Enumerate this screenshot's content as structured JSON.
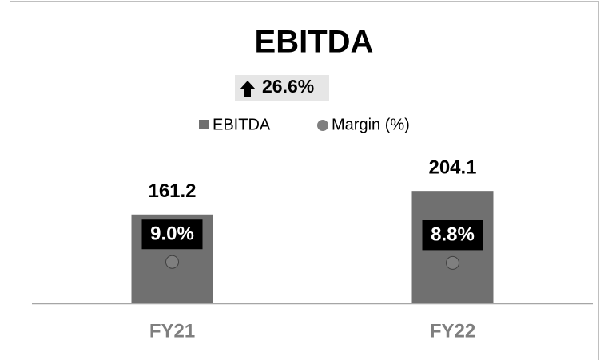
{
  "chart_data": {
    "type": "bar",
    "title": "EBITDA",
    "annotation": "26.6%",
    "categories": [
      "FY21",
      "FY22"
    ],
    "series": [
      {
        "name": "EBITDA",
        "color": "#707070",
        "values": [
          161.2,
          204.1
        ]
      },
      {
        "name": "Margin (%)",
        "color": "#7f7f7f",
        "axis": "y2",
        "values": [
          9.0,
          8.8
        ],
        "value_labels": [
          "9.0%",
          "8.8%"
        ]
      }
    ],
    "ylim": [
      0,
      300
    ],
    "y2lim": [
      0,
      36
    ],
    "legend": "top"
  }
}
